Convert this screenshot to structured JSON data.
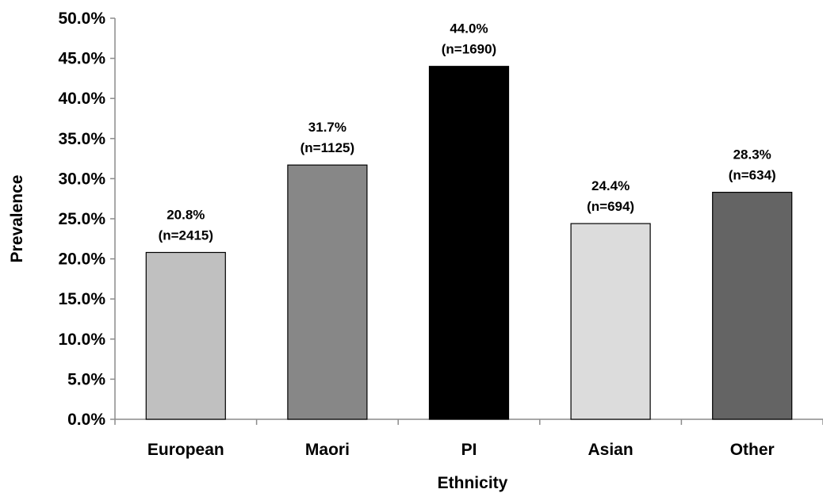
{
  "chart_data": {
    "type": "bar",
    "title": "",
    "xlabel": "Ethnicity",
    "ylabel": "Prevalence",
    "ylim": [
      0,
      50
    ],
    "y_tick_step": 5,
    "y_tick_labels": [
      "0.0%",
      "5.0%",
      "10.0%",
      "15.0%",
      "20.0%",
      "25.0%",
      "30.0%",
      "35.0%",
      "40.0%",
      "45.0%",
      "50.0%"
    ],
    "grid": false,
    "legend": "none",
    "categories": [
      "European",
      "Maori",
      "PI",
      "Asian",
      "Other"
    ],
    "values": [
      20.8,
      31.7,
      44.0,
      24.4,
      28.3
    ],
    "data_labels": [
      [
        "20.8%",
        "(n=2415)"
      ],
      [
        "31.7%",
        "(n=1125)"
      ],
      [
        "44.0%",
        "(n=1690)"
      ],
      [
        "24.4%",
        "(n=694)"
      ],
      [
        "28.3%",
        "(n=634)"
      ]
    ],
    "colors": [
      "#c0c0c0",
      "#878787",
      "#000000",
      "#dcdcdc",
      "#646464"
    ],
    "bar_outline": "#000000"
  }
}
